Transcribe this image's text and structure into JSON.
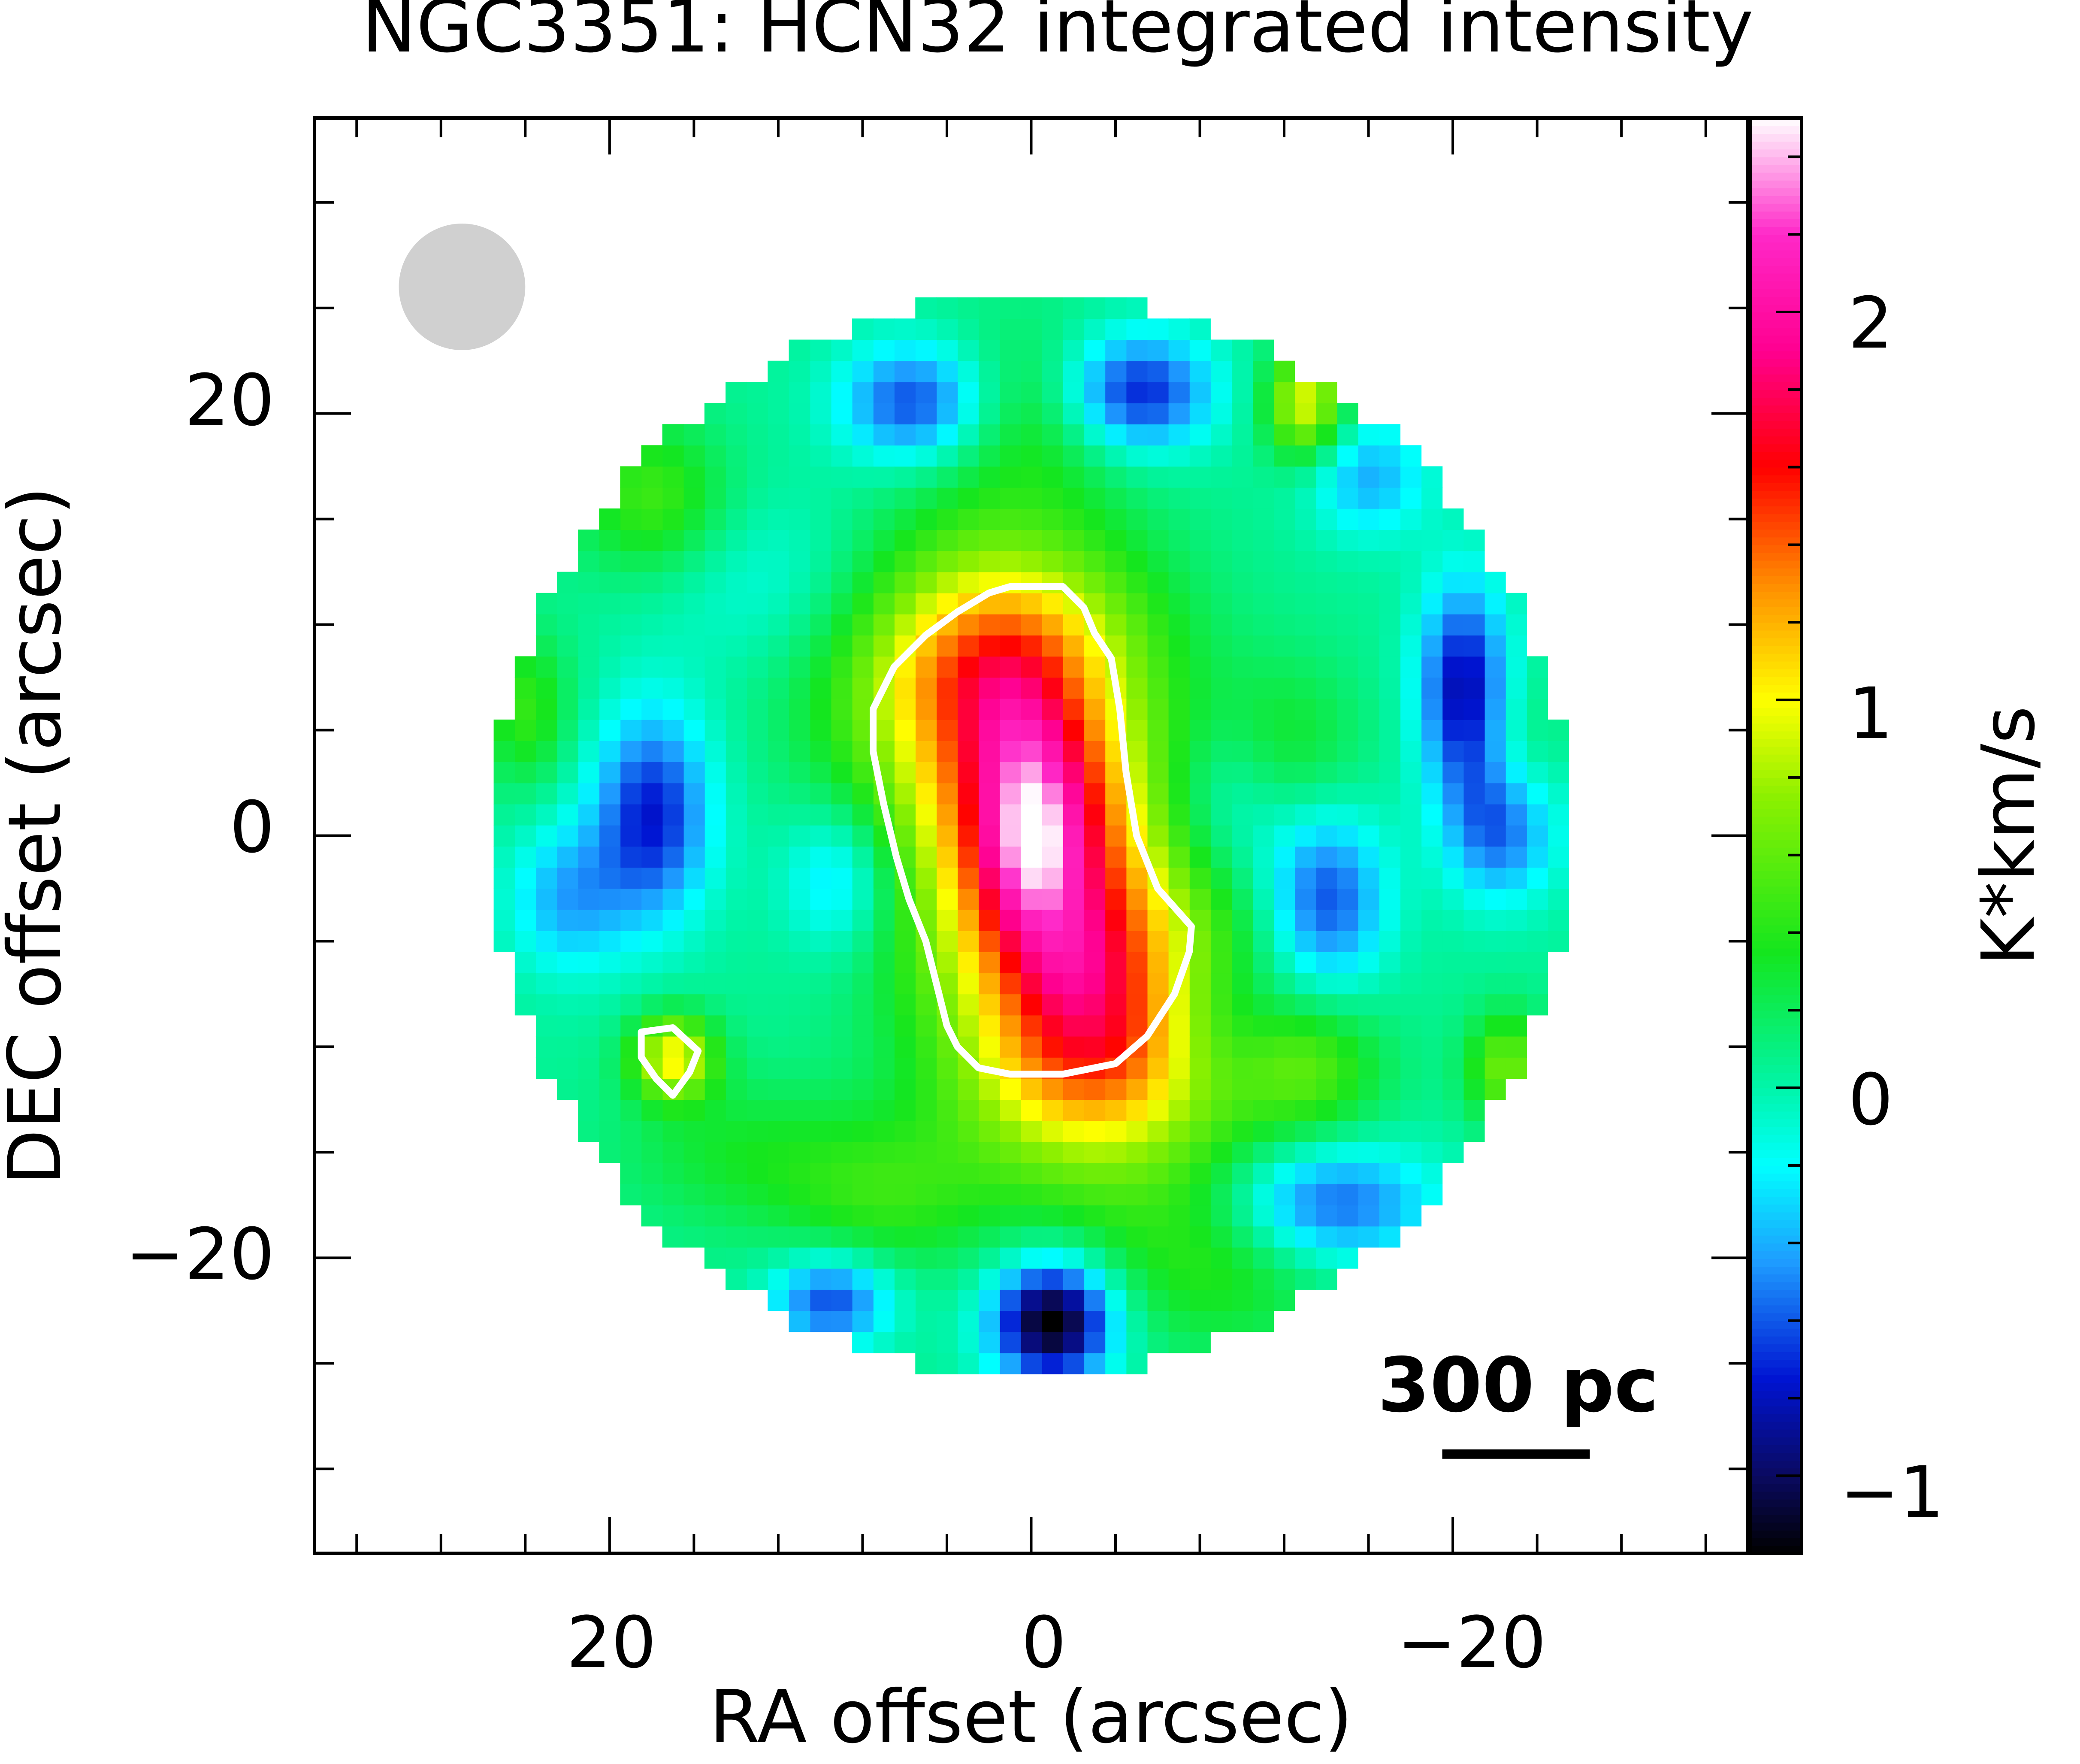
{
  "chart_data": {
    "type": "heatmap",
    "title": "NGC3351: HCN32 integrated intensity",
    "xlabel": "RA offset (arcsec)",
    "ylabel": "DEC offset (arcsec)",
    "colorbar_label": "K*km/s",
    "x_axis": {
      "range": [
        34,
        -34
      ],
      "reversed": true,
      "tick_labels": [
        "20",
        "0",
        "−20"
      ],
      "tick_values": [
        20,
        0,
        -20
      ],
      "minor_step": 4
    },
    "y_axis": {
      "range": [
        -34,
        34
      ],
      "tick_labels": [
        "20",
        "0",
        "−20"
      ],
      "tick_values": [
        20,
        0,
        -20
      ],
      "minor_step": 5
    },
    "colorbar": {
      "range": [
        -1.2,
        2.5
      ],
      "tick_labels": [
        "2",
        "1",
        "0",
        "−1"
      ],
      "tick_values": [
        2,
        1,
        0,
        -1
      ],
      "minor_step": 0.2,
      "colormap": [
        {
          "v": -1.2,
          "color": "#000000"
        },
        {
          "v": -1.0,
          "color": "#0a0a60"
        },
        {
          "v": -0.75,
          "color": "#0014d2"
        },
        {
          "v": -0.45,
          "color": "#1e9bff"
        },
        {
          "v": -0.2,
          "color": "#00ffff"
        },
        {
          "v": 0.0,
          "color": "#00f5aa"
        },
        {
          "v": 0.35,
          "color": "#14e61e"
        },
        {
          "v": 0.75,
          "color": "#8cf000"
        },
        {
          "v": 1.0,
          "color": "#ffff00"
        },
        {
          "v": 1.3,
          "color": "#ff8c00"
        },
        {
          "v": 1.6,
          "color": "#ff0000"
        },
        {
          "v": 1.9,
          "color": "#ff0090"
        },
        {
          "v": 2.2,
          "color": "#ff28c8"
        },
        {
          "v": 2.5,
          "color": "#ffffff"
        }
      ]
    },
    "map": {
      "center": [
        0,
        0
      ],
      "radius_arcsec": 25.5,
      "pixel_arcsec": 1.0,
      "background": 0.05,
      "features": [
        {
          "kind": "ridge",
          "from": [
            1.5,
            7
          ],
          "to": [
            -3,
            -9
          ],
          "width": 4.8,
          "peak": 1.6
        },
        {
          "kind": "peak",
          "pos": [
            0,
            0
          ],
          "sx": 1.8,
          "sy": 3.2,
          "amp": 0.95
        },
        {
          "kind": "peak",
          "pos": [
            1,
            5.5
          ],
          "sx": 1.8,
          "sy": 2.2,
          "amp": 0.25
        },
        {
          "kind": "peak",
          "pos": [
            -2,
            -6
          ],
          "sx": 2.0,
          "sy": 2.5,
          "amp": 0.3
        },
        {
          "kind": "peak",
          "pos": [
            17,
            -10.5
          ],
          "sx": 1.4,
          "sy": 1.4,
          "amp": 0.95
        },
        {
          "kind": "peak",
          "pos": [
            -13,
            20.5
          ],
          "sx": 1.3,
          "sy": 1.8,
          "amp": 0.9
        },
        {
          "kind": "peak",
          "pos": [
            18,
            16
          ],
          "sx": 2.5,
          "sy": 2.5,
          "amp": 0.45
        },
        {
          "kind": "peak",
          "pos": [
            -13,
            -11
          ],
          "sx": 2.5,
          "sy": 2.2,
          "amp": 0.45
        },
        {
          "kind": "peak",
          "pos": [
            -22.5,
            -11
          ],
          "sx": 1.3,
          "sy": 1.8,
          "amp": 0.6
        },
        {
          "kind": "peak",
          "pos": [
            24,
            6
          ],
          "sx": 1.5,
          "sy": 2.5,
          "amp": 0.4
        },
        {
          "kind": "peak",
          "pos": [
            0,
            20
          ],
          "sx": 3.5,
          "sy": 3.0,
          "amp": 0.3
        },
        {
          "kind": "peak",
          "pos": [
            -23,
            2
          ],
          "sx": 1.5,
          "sy": 3.0,
          "amp": 0.35
        },
        {
          "kind": "peak",
          "pos": [
            -12,
            4
          ],
          "sx": 2.5,
          "sy": 3.0,
          "amp": 0.3
        },
        {
          "kind": "peak",
          "pos": [
            7,
            -17
          ],
          "sx": 3.5,
          "sy": 2.5,
          "amp": 0.35
        },
        {
          "kind": "peak",
          "pos": [
            -9,
            -20
          ],
          "sx": 4.0,
          "sy": 3.0,
          "amp": 0.35
        },
        {
          "kind": "peak",
          "pos": [
            -1,
            -23
          ],
          "sx": 2.0,
          "sy": 2.0,
          "amp": -1.3
        },
        {
          "kind": "peak",
          "pos": [
            -5,
            21
          ],
          "sx": 2.5,
          "sy": 2.0,
          "amp": -0.85
        },
        {
          "kind": "peak",
          "pos": [
            5.5,
            20.5
          ],
          "sx": 2.5,
          "sy": 2.0,
          "amp": -0.75
        },
        {
          "kind": "peak",
          "pos": [
            18,
            1
          ],
          "sx": 2.0,
          "sy": 3.5,
          "amp": -0.8
        },
        {
          "kind": "peak",
          "pos": [
            -20.5,
            7
          ],
          "sx": 1.5,
          "sy": 3.5,
          "amp": -0.9
        },
        {
          "kind": "peak",
          "pos": [
            -22.5,
            0.5
          ],
          "sx": 1.8,
          "sy": 2.5,
          "amp": -0.85
        },
        {
          "kind": "peak",
          "pos": [
            -14,
            -3
          ],
          "sx": 2.0,
          "sy": 3.0,
          "amp": -0.7
        },
        {
          "kind": "peak",
          "pos": [
            -14,
            -17.5
          ],
          "sx": 3.5,
          "sy": 2.0,
          "amp": -0.7
        },
        {
          "kind": "peak",
          "pos": [
            9.5,
            -22
          ],
          "sx": 2.0,
          "sy": 1.5,
          "amp": -0.7
        },
        {
          "kind": "peak",
          "pos": [
            22,
            -3
          ],
          "sx": 2.0,
          "sy": 2.5,
          "amp": -0.45
        },
        {
          "kind": "peak",
          "pos": [
            -16,
            17
          ],
          "sx": 2.0,
          "sy": 2.0,
          "amp": -0.45
        },
        {
          "kind": "peak",
          "pos": [
            9,
            -2
          ],
          "sx": 2.0,
          "sy": 2.5,
          "amp": -0.45
        },
        {
          "kind": "peak",
          "pos": [
            -9,
            1.5
          ],
          "sx": 2.5,
          "sy": 3.0,
          "amp": -0.4
        },
        {
          "kind": "peak",
          "pos": [
            -9,
            -9
          ],
          "sx": 2.5,
          "sy": 2.5,
          "amp": -0.35
        },
        {
          "kind": "peak",
          "pos": [
            14,
            -15
          ],
          "sx": 4.0,
          "sy": 2.5,
          "amp": 0.25
        },
        {
          "kind": "peak",
          "pos": [
            12,
            12
          ],
          "sx": 4.0,
          "sy": 3.0,
          "amp": -0.2
        }
      ]
    },
    "contours": [
      {
        "color": "#ffffff",
        "points": [
          [
            1,
            11.8
          ],
          [
            -1.5,
            11.8
          ],
          [
            -2.5,
            10.8
          ],
          [
            -3,
            9.6
          ],
          [
            -3.8,
            8.4
          ],
          [
            -4.2,
            6
          ],
          [
            -4.5,
            3
          ],
          [
            -5,
            0
          ],
          [
            -6,
            -2.5
          ],
          [
            -7.6,
            -4.3
          ],
          [
            -7.5,
            -5.5
          ],
          [
            -6.8,
            -7.5
          ],
          [
            -5.5,
            -9.5
          ],
          [
            -4,
            -10.8
          ],
          [
            -1.5,
            -11.3
          ],
          [
            1,
            -11.3
          ],
          [
            2.5,
            -11
          ],
          [
            3.5,
            -10
          ],
          [
            4,
            -9
          ],
          [
            4.5,
            -7
          ],
          [
            5,
            -5
          ],
          [
            5.8,
            -3
          ],
          [
            6.4,
            -1
          ],
          [
            7,
            1.5
          ],
          [
            7.5,
            4
          ],
          [
            7.5,
            6
          ],
          [
            6.5,
            8
          ],
          [
            5,
            9.5
          ],
          [
            3.5,
            10.6
          ],
          [
            2,
            11.5
          ]
        ]
      },
      {
        "color": "#ffffff",
        "points": [
          [
            18.5,
            -9.3
          ],
          [
            17,
            -9.1
          ],
          [
            15.8,
            -10.2
          ],
          [
            16.2,
            -11.2
          ],
          [
            17,
            -12.3
          ],
          [
            17.8,
            -11.5
          ],
          [
            18.5,
            -10.5
          ]
        ]
      }
    ],
    "beam": {
      "center": [
        27,
        26
      ],
      "diameter_arcsec": 6.0,
      "color": "#d0d0d0"
    },
    "scale_bar": {
      "label": "300 pc",
      "from": [
        -19.5,
        -29.3
      ],
      "to": [
        -26.5,
        -29.3
      ]
    }
  }
}
